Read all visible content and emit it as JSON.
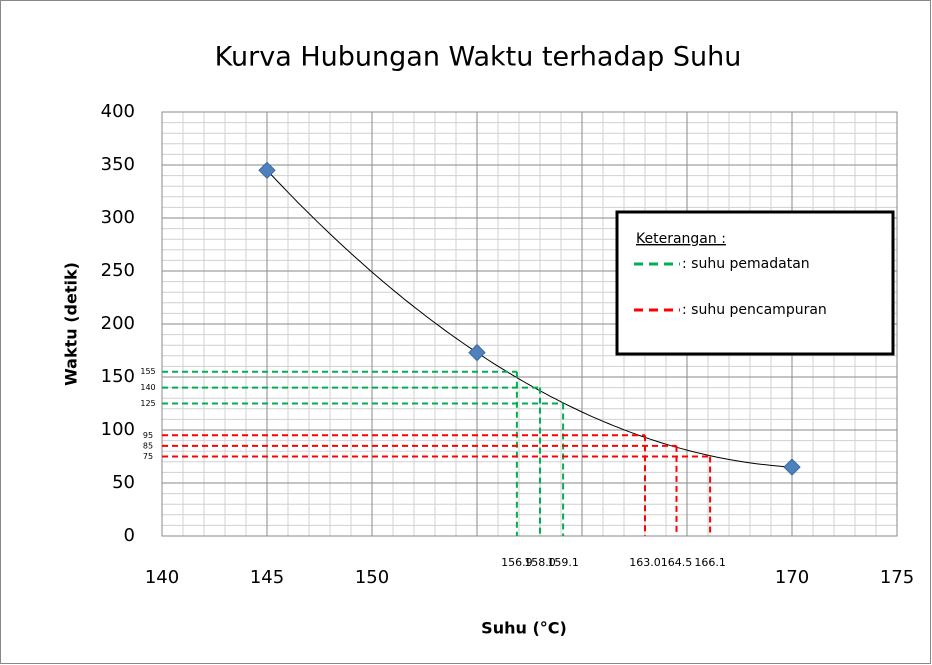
{
  "chart_data": {
    "type": "scatter",
    "title": "Kurva Hubungan Waktu terhadap Suhu",
    "x_label": "Suhu (°C)",
    "y_label": "Waktu (detik)",
    "x": [
      145,
      155,
      170
    ],
    "values": [
      345,
      173,
      65
    ],
    "color": "#4f81bd",
    "xlim": [
      140,
      175
    ],
    "xticks": [
      140,
      145,
      150,
      155,
      160,
      165,
      170,
      175
    ],
    "xtick_labels": [
      "140",
      "145",
      "150",
      null,
      null,
      null,
      "170",
      "175"
    ],
    "ylim": [
      0,
      400
    ],
    "yticks": [
      0,
      50,
      100,
      150,
      200,
      250,
      300,
      350,
      400
    ],
    "grid": true,
    "legend": {
      "title": "Keterangan :"
    },
    "guides": [
      {
        "label": ": suhu pemadatan",
        "color": "#00b050",
        "y": [
          155,
          140,
          125
        ],
        "x": [
          156.9,
          {
            "value": 158,
            "label": "158.0"
          },
          159.1
        ]
      },
      {
        "label": ": suhu pencampuran",
        "color": "#ff0000",
        "y": [
          95,
          85,
          75
        ],
        "x": [
          {
            "value": 163,
            "label": "163.0"
          },
          164.5,
          166.1
        ]
      }
    ]
  }
}
